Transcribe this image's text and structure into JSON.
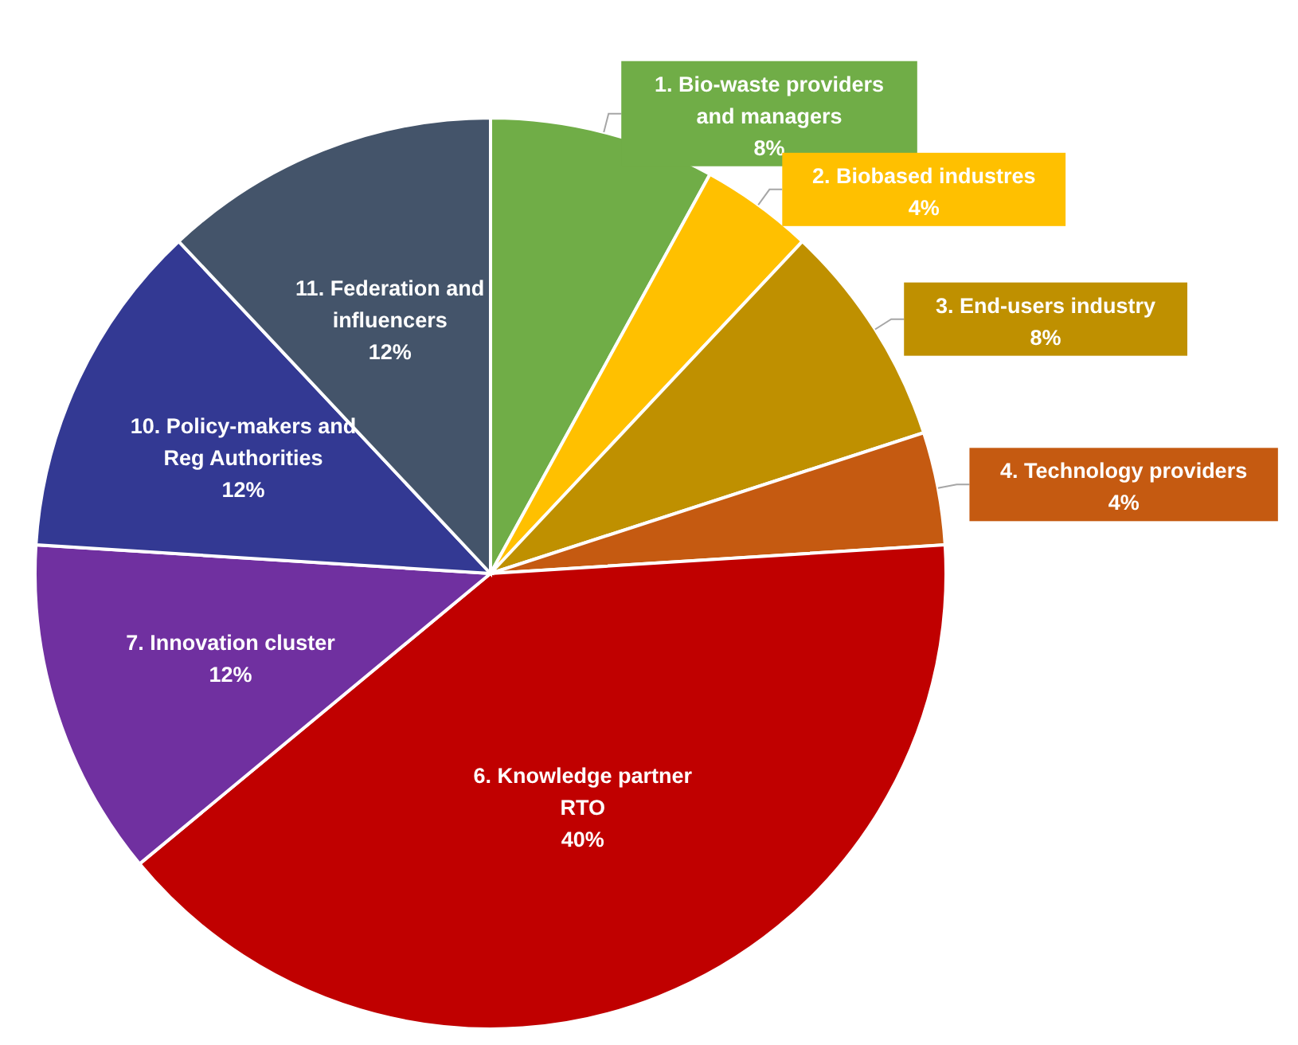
{
  "chart_data": {
    "type": "pie",
    "categories": [
      "1. Bio-waste providers\nand managers",
      "2. Biobased industres",
      "3. End-users industry",
      "4. Technology providers",
      "6. Knowledge partner\nRTO",
      "7. Innovation cluster",
      "10. Policy-makers and\nReg Authorities",
      "11. Federation and\ninfluencers"
    ],
    "values": [
      8,
      4,
      8,
      4,
      40,
      12,
      12,
      12
    ],
    "value_labels": [
      "8%",
      "4%",
      "8%",
      "4%",
      "40%",
      "12%",
      "12%",
      "12%"
    ],
    "colors": [
      "#70ad47",
      "#ffc000",
      "#bf9000",
      "#c55a11",
      "#c00000",
      "#7030a0",
      "#333993",
      "#44546a"
    ]
  }
}
